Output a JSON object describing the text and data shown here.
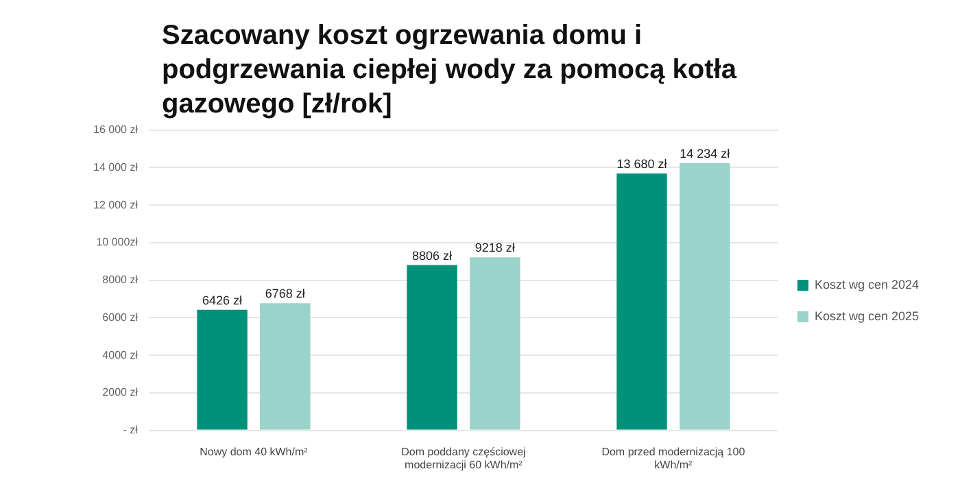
{
  "chart_data": {
    "type": "bar",
    "title": "Szacowany koszt ogrzewania domu i podgrzewania ciepłej wody za pomocą kotła gazowego [zł/rok]",
    "categories": [
      "Nowy dom 40 kWh/m²",
      "Dom poddany częściowej modernizacji 60 kWh/m²",
      "Dom przed modernizacją 100 kWh/m²"
    ],
    "series": [
      {
        "name": "Koszt wg cen 2024",
        "color": "#00917a",
        "values": [
          6426,
          8806,
          13680
        ],
        "value_labels": [
          "6426 zł",
          "8806 zł",
          "13 680 zł"
        ]
      },
      {
        "name": "Koszt wg cen 2025",
        "color": "#99d3c9",
        "values": [
          6768,
          9218,
          14234
        ],
        "value_labels": [
          "6768 zł",
          "9218 zł",
          "14 234 zł"
        ]
      }
    ],
    "ylim": [
      0,
      16000
    ],
    "yticks": [
      {
        "value": 0,
        "label": "- zł"
      },
      {
        "value": 2000,
        "label": "2000 zł"
      },
      {
        "value": 4000,
        "label": "4000 zł"
      },
      {
        "value": 6000,
        "label": "6000 zł"
      },
      {
        "value": 8000,
        "label": "8000 zł"
      },
      {
        "value": 10000,
        "label": "10 000zł"
      },
      {
        "value": 12000,
        "label": "12 000 zł"
      },
      {
        "value": 14000,
        "label": "14 000 zł"
      },
      {
        "value": 16000,
        "label": "16 000 zł"
      }
    ],
    "grid": "y",
    "legend": "right"
  }
}
